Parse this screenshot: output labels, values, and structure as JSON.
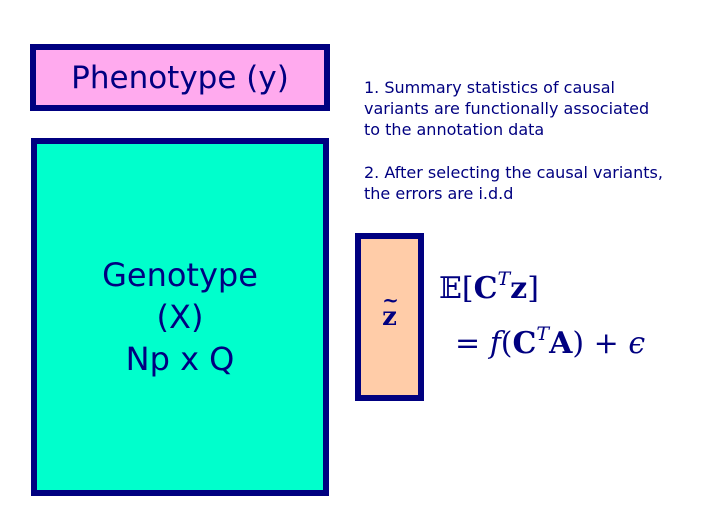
{
  "phenotype": {
    "label": "Phenotype (y)"
  },
  "genotype": {
    "lines": [
      "Genotype",
      "(X)",
      "Np x Q"
    ]
  },
  "notes": [
    {
      "lines": [
        "1. Summary statistics of causal",
        "variants are functionally associated",
        "to the annotation data"
      ]
    },
    {
      "lines": [
        "2. After selecting the causal variants,",
        "the errors are i.d.d"
      ]
    }
  ],
  "z_box": {
    "symbol": "z",
    "accent": "~"
  },
  "equation": {
    "line1": {
      "e": "𝔼",
      "open": "[",
      "c": "C",
      "t": "T",
      "z": "z",
      "close": "]"
    },
    "line2": {
      "eq": "=",
      "f": "f",
      "open": "(",
      "c": "C",
      "t": "T",
      "a": "A",
      "close": ")",
      "plus": "+",
      "eps": "ϵ"
    }
  },
  "colors": {
    "border": "#000080",
    "phenotype_fill": "#ffaaee",
    "genotype_fill": "#00ffcc",
    "z_fill": "#ffcca8",
    "text": "#000080"
  }
}
